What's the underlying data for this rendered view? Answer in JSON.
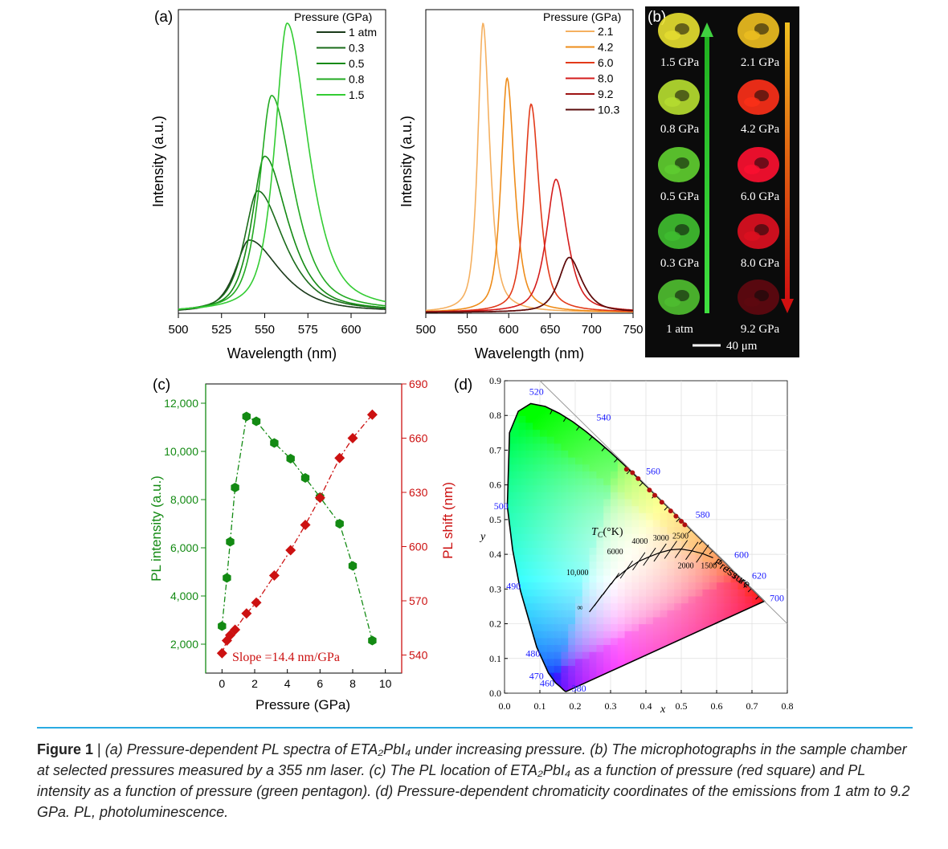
{
  "chart_data": [
    {
      "panel": "(a)",
      "type": "line",
      "xlabel": "Wavelength (nm)",
      "ylabel": "Intensity (a.u.)",
      "xlim": [
        500,
        620
      ],
      "xticks": [
        "500",
        "525",
        "550",
        "575",
        "600"
      ],
      "legend_title": "Pressure (GPa)",
      "legend_position": "top-right",
      "series": [
        {
          "name": "1 atm",
          "color": "#1a3a1a",
          "peak_x": 541,
          "peak_y": 0.25
        },
        {
          "name": "0.3",
          "color": "#1a6b1a",
          "peak_x": 546,
          "peak_y": 0.42
        },
        {
          "name": "0.5",
          "color": "#148a14",
          "peak_x": 550,
          "peak_y": 0.54
        },
        {
          "name": "0.8",
          "color": "#22aa22",
          "peak_x": 554,
          "peak_y": 0.75
        },
        {
          "name": "1.5",
          "color": "#33cc33",
          "peak_x": 563,
          "peak_y": 1.0
        }
      ]
    },
    {
      "panel": "",
      "type": "line",
      "xlabel": "Wavelength (nm)",
      "ylabel": "Intensity (a.u.)",
      "xlim": [
        500,
        750
      ],
      "xticks": [
        "500",
        "550",
        "600",
        "650",
        "700",
        "750"
      ],
      "legend_title": "Pressure (GPa)",
      "legend_position": "top-right",
      "series": [
        {
          "name": "2.1",
          "color": "#f5b060",
          "peak_x": 569,
          "peak_y": 1.0
        },
        {
          "name": "4.2",
          "color": "#ee8c1a",
          "peak_x": 598,
          "peak_y": 0.81
        },
        {
          "name": "6.0",
          "color": "#e23a1a",
          "peak_x": 627,
          "peak_y": 0.72
        },
        {
          "name": "8.0",
          "color": "#d41c1c",
          "peak_x": 657,
          "peak_y": 0.46
        },
        {
          "name": "9.2",
          "color": "#9e1414",
          "peak_x": 673,
          "peak_y": 0.19
        },
        {
          "name": "10.3",
          "color": "#5a0c0c",
          "peak_x": 673,
          "peak_y": 0.19
        }
      ]
    },
    {
      "panel": "(c)",
      "type": "scatter",
      "xlabel": "Pressure (GPa)",
      "ylabel_left": "PL intensity (a.u.)",
      "ylabel_right": "PL shift (nm)",
      "xlim": [
        -1,
        11
      ],
      "xticks": [
        "0",
        "2",
        "4",
        "6",
        "8",
        "10"
      ],
      "ylim_left": [
        800,
        12800
      ],
      "yticks_left": [
        "2,000",
        "4,000",
        "6,000",
        "8,000",
        "10,000",
        "12,000"
      ],
      "ylim_right": [
        530,
        690
      ],
      "yticks_right": [
        "540",
        "570",
        "600",
        "630",
        "660",
        "690"
      ],
      "annotation": "Slope =14.4 nm/GPa",
      "intensity": {
        "color": "#138a13",
        "x": [
          0,
          0.3,
          0.5,
          0.8,
          1.5,
          2.1,
          3.2,
          4.2,
          5.1,
          6.0,
          7.2,
          8.0,
          9.2
        ],
        "y": [
          2750,
          4750,
          6250,
          8500,
          11450,
          11250,
          10350,
          9700,
          8900,
          8100,
          7000,
          5250,
          2150
        ]
      },
      "shift": {
        "color": "#cc1111",
        "x": [
          0,
          0.3,
          0.5,
          0.8,
          1.5,
          2.1,
          3.2,
          4.2,
          5.1,
          6.0,
          7.2,
          8.0,
          9.2
        ],
        "y": [
          541,
          548,
          551,
          554,
          563,
          569,
          584,
          598,
          612,
          627,
          649,
          660,
          673
        ]
      }
    },
    {
      "panel": "(d)",
      "type": "scatter",
      "xlabel": "x",
      "ylabel": "y",
      "xlim": [
        0,
        0.8
      ],
      "ylim": [
        0,
        0.9
      ],
      "xticks": [
        "0.0",
        "0.1",
        "0.2",
        "0.3",
        "0.4",
        "0.5",
        "0.6",
        "0.7",
        "0.8"
      ],
      "yticks": [
        "0.0",
        "0.1",
        "0.2",
        "0.3",
        "0.4",
        "0.5",
        "0.6",
        "0.7",
        "0.8",
        "0.9"
      ],
      "wavelength_labels": [
        "380",
        "460",
        "470",
        "480",
        "490",
        "500",
        "520",
        "540",
        "560",
        "580",
        "600",
        "620",
        "700"
      ],
      "cct_title": "T",
      "cct_subscript": "C",
      "cct_unit": "(°K)",
      "cct_labels": [
        "∞",
        "10,000",
        "6000",
        "4000",
        "3000",
        "2500",
        "2000",
        "1500"
      ],
      "arrow_label": "Pressure",
      "points_x": [
        0.345,
        0.362,
        0.378,
        0.41,
        0.425,
        0.445,
        0.47,
        0.485,
        0.5,
        0.51
      ],
      "points_y": [
        0.645,
        0.635,
        0.618,
        0.585,
        0.57,
        0.55,
        0.525,
        0.51,
        0.495,
        0.485
      ]
    }
  ],
  "panel_b": {
    "label": "(b)",
    "left_column": [
      "1.5 GPa",
      "0.8 GPa",
      "0.5 GPa",
      "0.3 GPa",
      "1 atm"
    ],
    "right_column": [
      "2.1 GPa",
      "4.2 GPa",
      "6.0 GPa",
      "8.0 GPa",
      "9.2 GPa"
    ],
    "left_colors": [
      "#e8e030",
      "#b8e030",
      "#60d030",
      "#40c030",
      "#50c030"
    ],
    "right_colors": [
      "#f0c020",
      "#ff3018",
      "#ff1030",
      "#e01020",
      "#600810"
    ],
    "scale_bar": "40 μm"
  },
  "caption": {
    "lead": "Figure 1",
    "separator": " | ",
    "text": "(a) Pressure-dependent PL spectra of ETA₂PbI₄ under increasing pressure. (b) The microphotographs in the sample chamber at selected pressures measured by a 355 nm laser. (c) The PL location of ETA₂PbI₄ as a function of pressure (red square) and PL intensity as a function of pressure (green pentagon). (d) Pressure-dependent chromaticity coordinates of the emissions from 1 atm to 9.2 GPa. PL, photoluminescence."
  }
}
